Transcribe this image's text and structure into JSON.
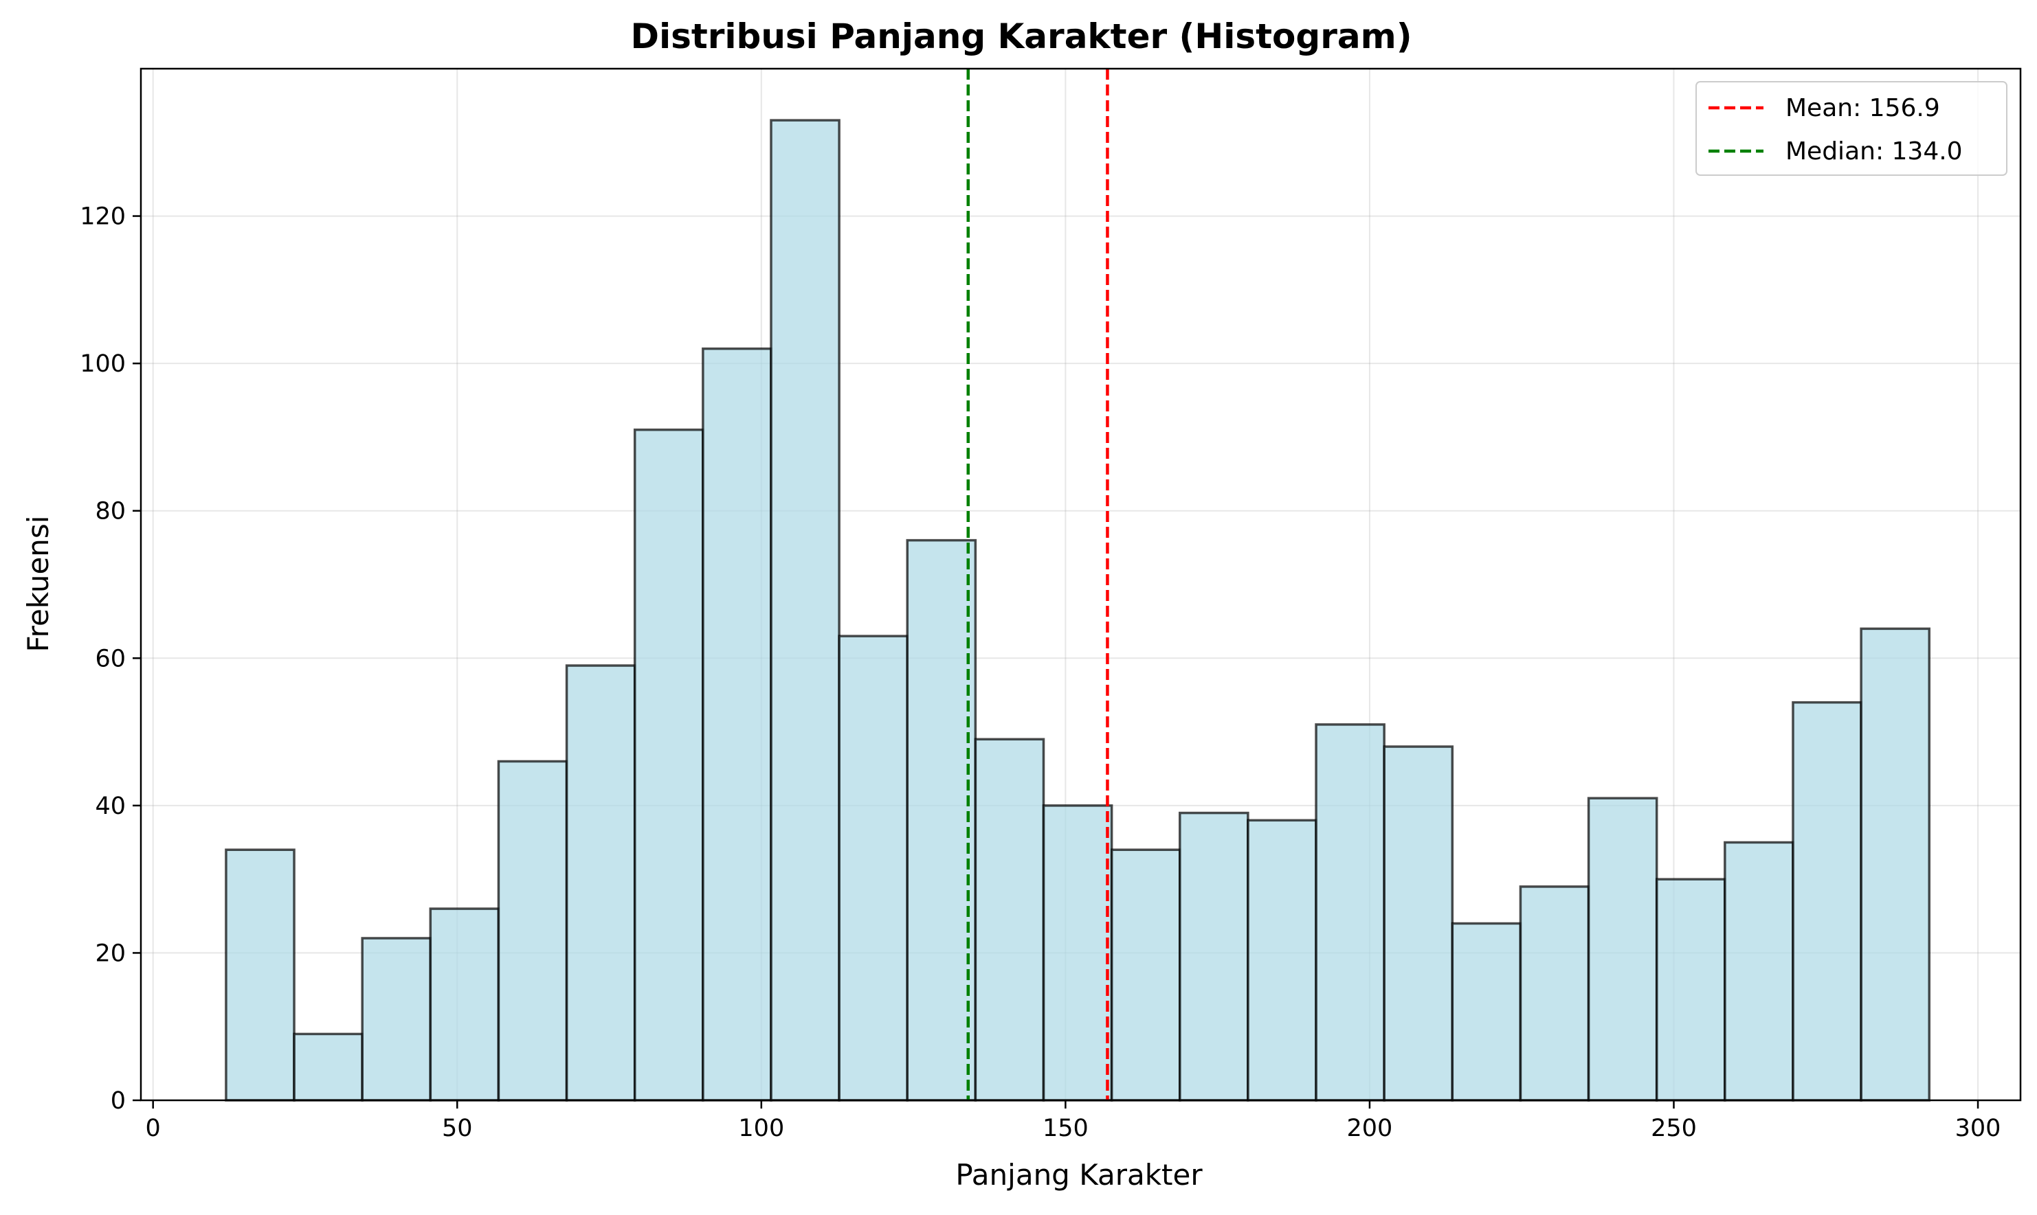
{
  "chart_data": {
    "type": "bar",
    "title": "Distribusi Panjang Karakter (Histogram)",
    "xlabel": "Panjang Karakter",
    "ylabel": "Frekuensi",
    "xlim": [
      -2,
      307
    ],
    "ylim": [
      0,
      140
    ],
    "xticks": [
      0,
      50,
      100,
      150,
      200,
      250,
      300
    ],
    "yticks": [
      0,
      20,
      40,
      60,
      80,
      100,
      120
    ],
    "grid": true,
    "bin_edges": [
      12.0,
      23.2,
      34.4,
      45.6,
      56.8,
      68.0,
      79.2,
      90.4,
      101.6,
      112.8,
      124.0,
      135.2,
      146.4,
      157.6,
      168.8,
      180.0,
      191.2,
      202.4,
      213.6,
      224.8,
      236.0,
      247.2,
      258.4,
      269.6,
      280.8,
      292.0
    ],
    "values": [
      34,
      9,
      22,
      26,
      46,
      59,
      91,
      102,
      133,
      63,
      76,
      49,
      40,
      34,
      39,
      38,
      51,
      48,
      24,
      29,
      41,
      30,
      35,
      54,
      64
    ],
    "bar_color": "#add8e6",
    "bar_edge_color": "#000000",
    "vlines": [
      {
        "label": "Mean: 156.9",
        "x": 156.9,
        "color": "#ff0000",
        "style": "dashed"
      },
      {
        "label": "Median: 134.0",
        "x": 134.0,
        "color": "#008000",
        "style": "dashed"
      }
    ],
    "legend_position": "top-right"
  }
}
